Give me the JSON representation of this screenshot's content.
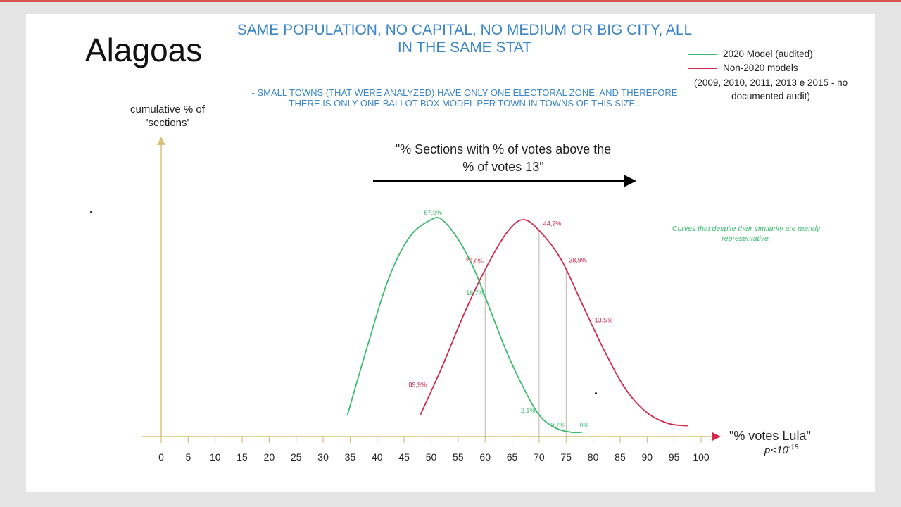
{
  "page": {
    "title": "Alagoas",
    "headline": "SAME POPULATION, NO CAPITAL, NO MEDIUM OR BIG CITY, ALL IN THE SAME STAT",
    "subnote": "- SMALL TOWNS (THAT WERE ANALYZED) HAVE ONLY ONE ELECTORAL ZONE, AND THEREFORE THERE IS ONLY ONE BALLOT BOX MODEL PER TOWN IN TOWNS OF THIS SIZE..",
    "arrow_label": "\"% Sections with % of votes above the % of votes 13\"",
    "curve_note": "Curves that despite their similarity are merely representative.",
    "p_value_base": "p<10",
    "p_value_exp": "-18"
  },
  "colors": {
    "green": "#3cba6f",
    "red": "#d22a4f",
    "axis": "#d8c27a",
    "headline": "#3a86c8"
  },
  "chart_data": {
    "type": "line",
    "title": "",
    "xlabel": "\"% votes Lula\"",
    "ylabel": "cumulative % of 'sections'",
    "xlim": [
      0,
      100
    ],
    "ylim": [
      0,
      100
    ],
    "x_ticks": [
      "0",
      "5",
      "10",
      "15",
      "20",
      "25",
      "30",
      "35",
      "40",
      "45",
      "50",
      "55",
      "60",
      "65",
      "70",
      "75",
      "80",
      "85",
      "90",
      "95",
      "100"
    ],
    "grid": false,
    "legend_position": "top-right",
    "legend": [
      {
        "label": "2020 Model (audited)",
        "color": "#3cba6f"
      },
      {
        "label": "Non-2020 models",
        "color": "#d22a4f"
      }
    ],
    "legend_note": "(2009, 2010, 2011, 2013 e 2015 - no documented audit)",
    "series": [
      {
        "name": "2020 Model (audited)",
        "color": "#3cba6f",
        "points": [
          [
            34.5,
            10
          ],
          [
            38,
            40
          ],
          [
            42,
            72
          ],
          [
            46,
            92
          ],
          [
            50,
            100
          ],
          [
            52,
            100
          ],
          [
            55,
            91
          ],
          [
            58,
            77
          ],
          [
            61,
            58
          ],
          [
            64,
            39
          ],
          [
            67,
            23
          ],
          [
            70,
            10
          ],
          [
            73,
            4
          ],
          [
            76,
            2
          ],
          [
            78,
            2
          ]
        ],
        "annotations": [
          {
            "x": 50,
            "label": "57,9%"
          },
          {
            "x": 60,
            "label": "16,7%"
          },
          {
            "x": 70,
            "label": "2,1%"
          },
          {
            "x": 75,
            "label": "0,7%"
          },
          {
            "x": 80,
            "label": "0%"
          }
        ]
      },
      {
        "name": "Non-2020 models",
        "color": "#d22a4f",
        "points": [
          [
            48,
            10
          ],
          [
            52,
            32
          ],
          [
            56,
            56
          ],
          [
            60,
            77
          ],
          [
            64,
            94
          ],
          [
            67,
            100
          ],
          [
            70,
            95
          ],
          [
            74,
            82
          ],
          [
            78,
            61
          ],
          [
            82,
            40
          ],
          [
            86,
            22
          ],
          [
            90,
            11
          ],
          [
            94,
            6
          ],
          [
            97.5,
            5
          ]
        ],
        "annotations": [
          {
            "x": 50,
            "label": "89,9%"
          },
          {
            "x": 60,
            "label": "72,6%"
          },
          {
            "x": 70,
            "label": "44,2%"
          },
          {
            "x": 75,
            "label": "28,9%"
          },
          {
            "x": 80,
            "label": "13,5%"
          }
        ]
      }
    ]
  }
}
